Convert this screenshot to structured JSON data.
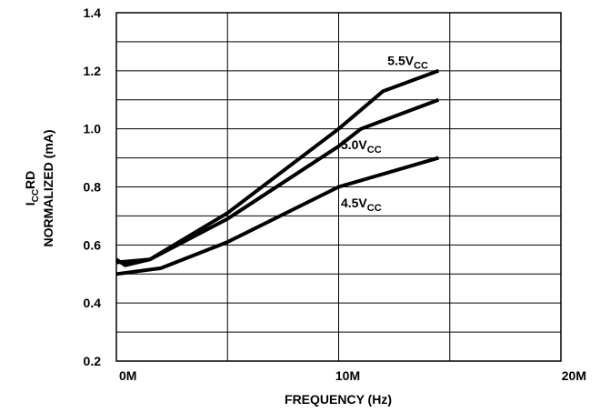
{
  "chart_data": {
    "type": "line",
    "xlabel": "FREQUENCY (Hz)",
    "ylabel_main": "I",
    "ylabel_sub": "CC",
    "ylabel_tail": "RD",
    "ylabel_line2": "NORMALIZED (mA)",
    "xlim": [
      0,
      20
    ],
    "ylim": [
      0.2,
      1.4
    ],
    "x_ticks": [
      {
        "value": 0,
        "label": "0M"
      },
      {
        "value": 10,
        "label": "10M"
      },
      {
        "value": 20,
        "label": "20M"
      }
    ],
    "y_ticks": [
      {
        "value": 0.2,
        "label": "0.2"
      },
      {
        "value": 0.4,
        "label": "0.4"
      },
      {
        "value": 0.6,
        "label": "0.6"
      },
      {
        "value": 0.8,
        "label": "0.8"
      },
      {
        "value": 1.0,
        "label": "1.0"
      },
      {
        "value": 1.2,
        "label": "1.2"
      },
      {
        "value": 1.4,
        "label": "1.4"
      }
    ],
    "x_grid": [
      0,
      5,
      10,
      15,
      20
    ],
    "y_grid": [
      0.2,
      0.3,
      0.4,
      0.5,
      0.6,
      0.7,
      0.8,
      0.9,
      1.0,
      1.1,
      1.2,
      1.3,
      1.4
    ],
    "grid": true,
    "series": [
      {
        "name_main": "5.5V",
        "name_sub": "CC",
        "label_at": [
          12.2,
          1.22
        ],
        "points": [
          [
            0,
            0.55
          ],
          [
            0.4,
            0.53
          ],
          [
            1.5,
            0.55
          ],
          [
            5,
            0.71
          ],
          [
            10,
            1.0
          ],
          [
            12,
            1.13
          ],
          [
            14.5,
            1.2
          ]
        ]
      },
      {
        "name_main": "5.0V",
        "name_sub": "CC",
        "label_at": [
          10.1,
          0.93
        ],
        "points": [
          [
            0,
            0.54
          ],
          [
            1.5,
            0.55
          ],
          [
            5,
            0.69
          ],
          [
            10,
            0.94
          ],
          [
            11,
            1.0
          ],
          [
            14.5,
            1.1
          ]
        ]
      },
      {
        "name_main": "4.5V",
        "name_sub": "CC",
        "label_at": [
          10.1,
          0.73
        ],
        "points": [
          [
            0,
            0.5
          ],
          [
            2,
            0.52
          ],
          [
            5,
            0.61
          ],
          [
            10,
            0.8
          ],
          [
            14.5,
            0.9
          ]
        ]
      }
    ]
  }
}
